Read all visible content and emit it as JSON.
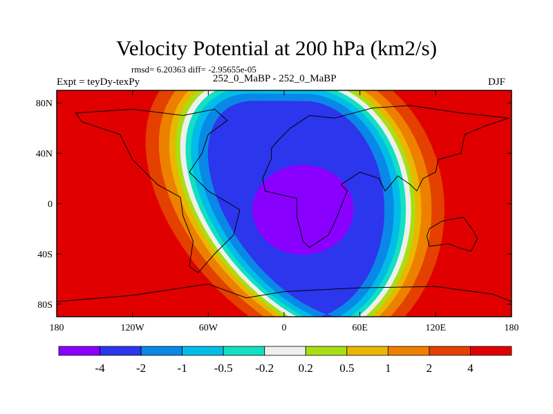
{
  "title": "Velocity Potential at 200 hPa (km2/s)",
  "stats": "rmsd= 6.20363 diff= -2.95655e-05",
  "left_label": "Expt = teyDy-texPy",
  "center_label": "252_0_MaBP - 252_0_MaBP",
  "right_label": "DJF",
  "chart_data": {
    "type": "heatmap",
    "title": "Velocity Potential at 200 hPa (km2/s)",
    "xlabel": "",
    "ylabel": "",
    "xlim": [
      -180,
      180
    ],
    "ylim": [
      -90,
      90
    ],
    "x_ticks": [
      {
        "value": -180,
        "label": "180"
      },
      {
        "value": -120,
        "label": "120W"
      },
      {
        "value": -60,
        "label": "60W"
      },
      {
        "value": 0,
        "label": "0"
      },
      {
        "value": 60,
        "label": "60E"
      },
      {
        "value": 120,
        "label": "120E"
      },
      {
        "value": 180,
        "label": "180"
      }
    ],
    "y_ticks": [
      {
        "value": 80,
        "label": "80N"
      },
      {
        "value": 40,
        "label": "40N"
      },
      {
        "value": 0,
        "label": "0"
      },
      {
        "value": -40,
        "label": "40S"
      },
      {
        "value": -80,
        "label": "80S"
      }
    ],
    "colorbar": {
      "levels": [
        "-4",
        "-2",
        "-1",
        "-0.5",
        "-0.2",
        "0.2",
        "0.5",
        "1",
        "2",
        "4"
      ],
      "colors": [
        "#8a00ff",
        "#2c36ec",
        "#0a88e8",
        "#00bde8",
        "#12e0c0",
        "#efefef",
        "#a8df14",
        "#e8b800",
        "#ee8000",
        "#e44000",
        "#e00000"
      ]
    },
    "field_description": "Dipole pattern: negative minimum (< -4) centered near 20E, 0N; positive maxima (> 4) over the central Pacific on both edges of the map."
  }
}
